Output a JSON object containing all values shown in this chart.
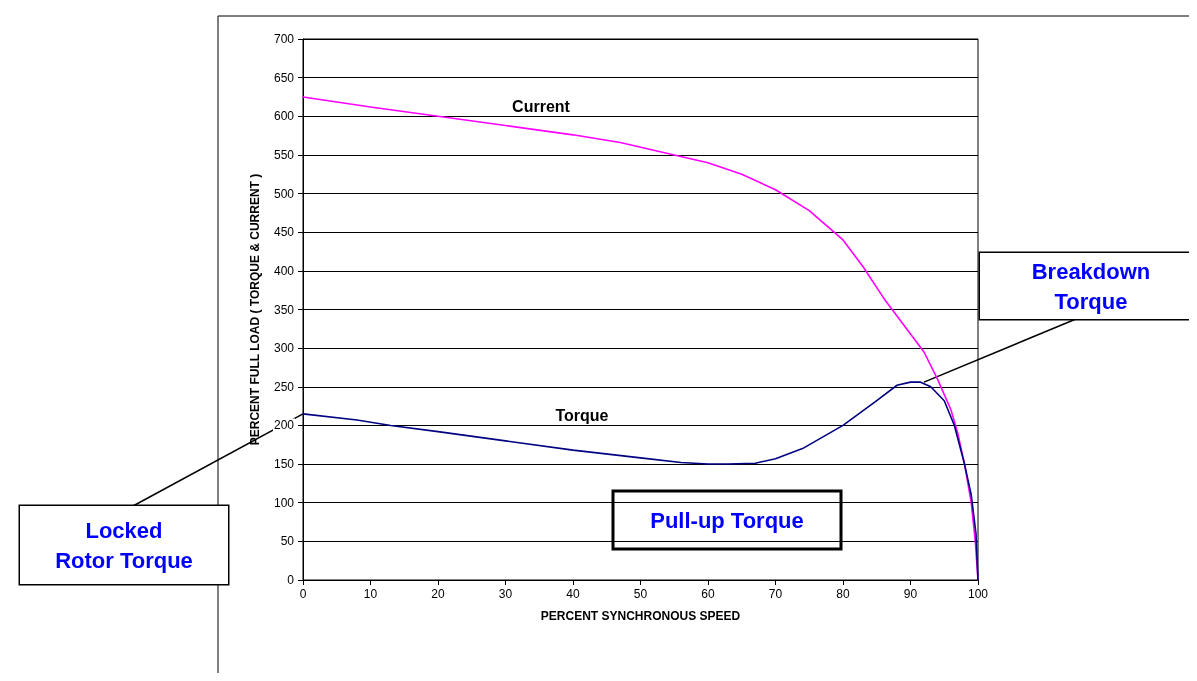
{
  "chart_data": {
    "type": "line",
    "xlabel": "PERCENT SYNCHRONOUS SPEED",
    "ylabel": "PERCENT FULL LOAD ( TORQUE & CURRENT )",
    "xlim": [
      0,
      100
    ],
    "xticks": [
      0,
      10,
      20,
      30,
      40,
      50,
      60,
      70,
      80,
      90,
      100
    ],
    "ylim": [
      0,
      700
    ],
    "yticks": [
      0,
      50,
      100,
      150,
      200,
      250,
      300,
      350,
      400,
      450,
      500,
      550,
      600,
      650,
      700
    ],
    "grid": "y",
    "legend": false,
    "marker": "none",
    "line_style": "solid",
    "series": [
      {
        "name": "Current",
        "color": "#ff00ff",
        "x": [
          0,
          10,
          20,
          30,
          40,
          47,
          55,
          60,
          65,
          70,
          75,
          80,
          83,
          86,
          89,
          92,
          94,
          96,
          97,
          98,
          99,
          99.6,
          100
        ],
        "values": [
          625,
          612,
          600,
          588,
          576,
          566,
          550,
          540,
          525,
          505,
          478,
          440,
          405,
          365,
          330,
          295,
          260,
          220,
          190,
          150,
          100,
          50,
          0
        ]
      },
      {
        "name": "Torque",
        "color": "#000080",
        "x": [
          0,
          8,
          13,
          20,
          30,
          40,
          50,
          56,
          60,
          63,
          67,
          70,
          74,
          80,
          85,
          88,
          90,
          91.5,
          93,
          95,
          96.5,
          98,
          99,
          99.7,
          100
        ],
        "values": [
          215,
          207,
          200,
          192,
          180,
          168,
          158,
          152,
          150,
          150,
          151,
          157,
          170,
          200,
          232,
          252,
          256,
          256,
          250,
          232,
          200,
          150,
          110,
          60,
          0
        ]
      }
    ],
    "annotations": [
      {
        "text": "Locked Rotor Torque",
        "x": 0,
        "y": 215
      },
      {
        "text": "Breakdown Torque",
        "x": 92,
        "y": 256
      },
      "Pull-up Torque"
    ]
  }
}
